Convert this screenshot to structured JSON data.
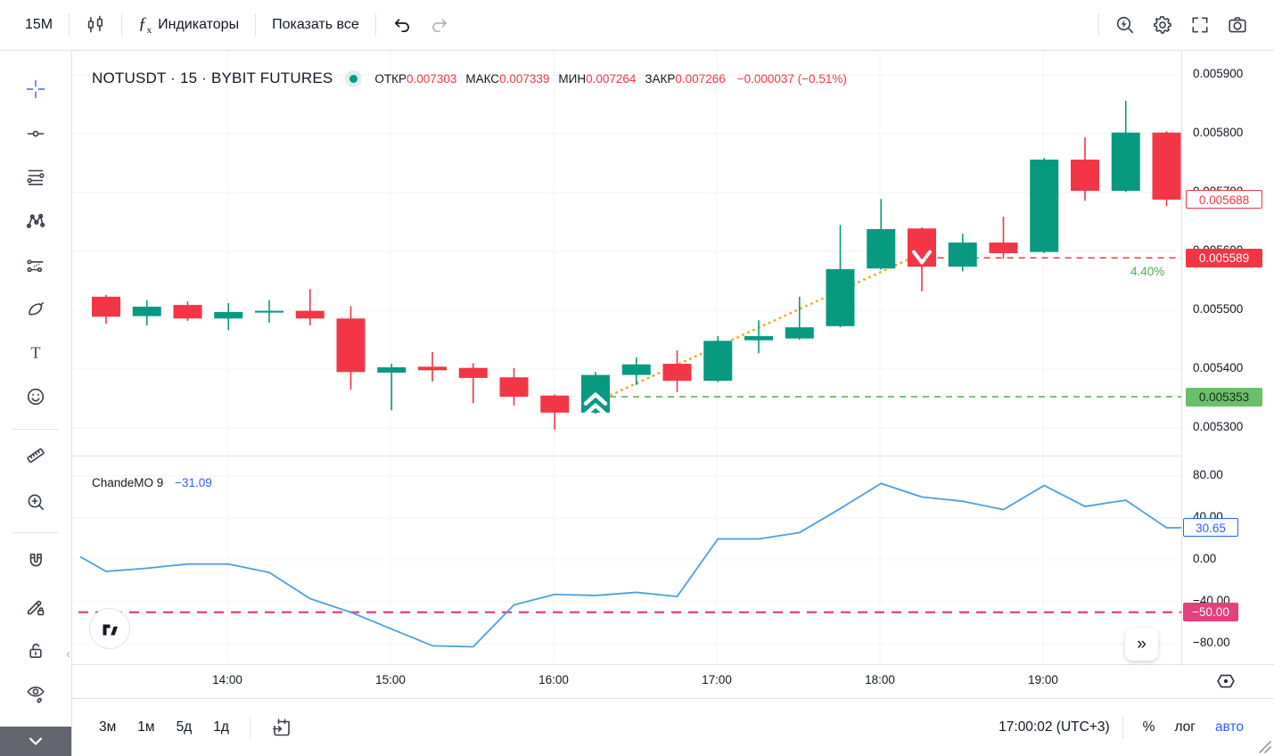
{
  "toolbar": {
    "interval": "15M",
    "fx_glyph": "ƒ",
    "indicators_label": "Индикаторы",
    "show_all_label": "Показать все",
    "right_icons": [
      "flash-search-icon",
      "settings-gear-icon",
      "fullscreen-icon",
      "camera-icon"
    ]
  },
  "legend": {
    "symbol": "NOTUSDT · 15 · BYBIT FUTURES",
    "ohlc": [
      {
        "label": "ОТКР",
        "value": "0.007303"
      },
      {
        "label": "МАКС",
        "value": "0.007339"
      },
      {
        "label": "МИН",
        "value": "0.007264"
      },
      {
        "label": "ЗАКР",
        "value": "0.007266"
      }
    ],
    "change": "−0.000037 (−0.51%)"
  },
  "indicator_legend": {
    "name": "ChandeMO 9",
    "value": "−31.09"
  },
  "annotations": {
    "gain_percent": "4.40%"
  },
  "sidebar": {
    "tools": [
      "crosshair",
      "trend-line",
      "fib-retracement",
      "xabcd-pattern",
      "forecast",
      "brush",
      "text",
      "emoji",
      "measure",
      "zoom-in",
      "magnet",
      "drawing-mode-lock",
      "lock-all-drawings",
      "hide-all-drawings"
    ]
  },
  "footer": {
    "ranges": [
      "3м",
      "1м",
      "5д",
      "1д"
    ],
    "clock": "17:00:02 (UTC+3)",
    "percent_label": "%",
    "log_label": "лог",
    "auto_label": "авто"
  },
  "chart_data": {
    "type": "candlestick",
    "symbol": "NOTUSDT",
    "interval_minutes": 15,
    "colors": {
      "up": "#089981",
      "down": "#f23645",
      "chande_line": "#4f9fe0",
      "level_green": "#4caf50",
      "level_red": "#f23645",
      "level_pink": "#e5407a",
      "trendline_orange": "#f5a623",
      "grid": "#f0f3fa"
    },
    "price_axis_ticks": [
      {
        "text": "0.005900",
        "price": 0.0059
      },
      {
        "text": "0.005800",
        "price": 0.0058
      },
      {
        "text": "0.005700",
        "price": 0.0057
      },
      {
        "text": "0.005600",
        "price": 0.0056
      },
      {
        "text": "0.005500",
        "price": 0.0055
      },
      {
        "text": "0.005400",
        "price": 0.0054
      },
      {
        "text": "0.005300",
        "price": 0.0053
      }
    ],
    "price_labels": [
      {
        "text": "0.005688",
        "price": 0.005688,
        "style": "outline",
        "color": "#f23645",
        "bg": "#ffffff"
      },
      {
        "text": "0.005589",
        "price": 0.005589,
        "style": "fill",
        "color": "#ffffff",
        "bg": "#f23645"
      },
      {
        "text": "0.005353",
        "price": 0.005353,
        "style": "fill",
        "color": "#16271a",
        "bg": "#6abf69"
      }
    ],
    "time_ticks": [
      {
        "text": "14:00"
      },
      {
        "text": "15:00"
      },
      {
        "text": "16:00"
      },
      {
        "text": "17:00"
      },
      {
        "text": "18:00"
      },
      {
        "text": "19:00"
      }
    ],
    "candles": [
      {
        "t": "13:15",
        "o": 0.005523,
        "h": 0.005526,
        "l": 0.005477,
        "c": 0.005489
      },
      {
        "t": "13:30",
        "o": 0.00549,
        "h": 0.005517,
        "l": 0.005474,
        "c": 0.005506
      },
      {
        "t": "13:45",
        "o": 0.005509,
        "h": 0.005515,
        "l": 0.005482,
        "c": 0.005486
      },
      {
        "t": "14:00",
        "o": 0.005486,
        "h": 0.005512,
        "l": 0.005466,
        "c": 0.005497
      },
      {
        "t": "14:15",
        "o": 0.005497,
        "h": 0.005517,
        "l": 0.005479,
        "c": 0.005499
      },
      {
        "t": "14:30",
        "o": 0.005499,
        "h": 0.005536,
        "l": 0.005474,
        "c": 0.005486
      },
      {
        "t": "14:45",
        "o": 0.005486,
        "h": 0.005507,
        "l": 0.005365,
        "c": 0.005395
      },
      {
        "t": "15:00",
        "o": 0.005394,
        "h": 0.005409,
        "l": 0.00533,
        "c": 0.005403
      },
      {
        "t": "15:15",
        "o": 0.005404,
        "h": 0.005429,
        "l": 0.005379,
        "c": 0.005398
      },
      {
        "t": "15:30",
        "o": 0.005402,
        "h": 0.00541,
        "l": 0.005342,
        "c": 0.005385
      },
      {
        "t": "15:45",
        "o": 0.005386,
        "h": 0.005402,
        "l": 0.005338,
        "c": 0.005353
      },
      {
        "t": "16:00",
        "o": 0.005355,
        "h": 0.005357,
        "l": 0.005297,
        "c": 0.005326
      },
      {
        "t": "16:15",
        "o": 0.005326,
        "h": 0.005395,
        "l": 0.005324,
        "c": 0.00539
      },
      {
        "t": "16:30",
        "o": 0.00539,
        "h": 0.00542,
        "l": 0.005373,
        "c": 0.005408
      },
      {
        "t": "16:45",
        "o": 0.005409,
        "h": 0.005432,
        "l": 0.005361,
        "c": 0.00538
      },
      {
        "t": "17:00",
        "o": 0.00538,
        "h": 0.005456,
        "l": 0.005378,
        "c": 0.005448
      },
      {
        "t": "17:15",
        "o": 0.005449,
        "h": 0.005483,
        "l": 0.005427,
        "c": 0.005456
      },
      {
        "t": "17:30",
        "o": 0.005452,
        "h": 0.005523,
        "l": 0.00545,
        "c": 0.005471
      },
      {
        "t": "17:45",
        "o": 0.005473,
        "h": 0.005645,
        "l": 0.005471,
        "c": 0.00557
      },
      {
        "t": "18:00",
        "o": 0.005571,
        "h": 0.005689,
        "l": 0.005569,
        "c": 0.005638
      },
      {
        "t": "18:15",
        "o": 0.005639,
        "h": 0.005641,
        "l": 0.005532,
        "c": 0.005574
      },
      {
        "t": "18:30",
        "o": 0.005574,
        "h": 0.00563,
        "l": 0.005566,
        "c": 0.005615
      },
      {
        "t": "18:45",
        "o": 0.005615,
        "h": 0.005659,
        "l": 0.005588,
        "c": 0.005597
      },
      {
        "t": "19:00",
        "o": 0.005599,
        "h": 0.005759,
        "l": 0.005597,
        "c": 0.005756
      },
      {
        "t": "19:15",
        "o": 0.005756,
        "h": 0.005794,
        "l": 0.005686,
        "c": 0.005703
      },
      {
        "t": "19:30",
        "o": 0.005703,
        "h": 0.005856,
        "l": 0.005701,
        "c": 0.005802
      },
      {
        "t": "19:45",
        "o": 0.005802,
        "h": 0.005804,
        "l": 0.005677,
        "c": 0.005688
      }
    ],
    "levels": [
      {
        "pane": "price",
        "value": 0.005353,
        "color": "#4caf50",
        "start_candle": 12.35
      },
      {
        "pane": "price",
        "value": 0.005589,
        "color": "#f23645",
        "start_candle": 20.1
      },
      {
        "pane": "chande",
        "value": -50,
        "color": "#e5407a",
        "start_candle": -0.6
      }
    ],
    "trendline": {
      "from_candle": 12.25,
      "from_price": 0.005352,
      "to_candle": 19.85,
      "to_price": 0.005592,
      "color": "#f5a623"
    },
    "markers": [
      {
        "candle": 12,
        "price": 0.005349,
        "type": "double-chevron-up"
      },
      {
        "candle": 20,
        "price": 0.005587,
        "type": "v-down"
      }
    ],
    "chande": {
      "name": "ChandeMO",
      "length": 9,
      "last_value": 30.65,
      "lead_value": 3,
      "values": [
        -11,
        -8,
        -4,
        -4,
        -12,
        -37,
        -50,
        -66,
        -82,
        -83,
        -43,
        -33,
        -34,
        -31,
        -35,
        20,
        20,
        26,
        49,
        73,
        60,
        56,
        48,
        71,
        51,
        57,
        30.65
      ],
      "axis_ticks": [
        {
          "text": "80.00",
          "value": 80
        },
        {
          "text": "40.00",
          "value": 40
        },
        {
          "text": "0.00",
          "value": 0
        },
        {
          "text": "−40.00",
          "value": -40
        },
        {
          "text": "−80.00",
          "value": -80
        }
      ],
      "labels": [
        {
          "text": "30.65",
          "value": 30.65,
          "style": "outline",
          "color": "#2962ff",
          "bg": "#ffffff"
        },
        {
          "text": "−50.00",
          "value": -50,
          "style": "fill",
          "color": "#ffffff",
          "bg": "#e5407a"
        }
      ]
    }
  }
}
